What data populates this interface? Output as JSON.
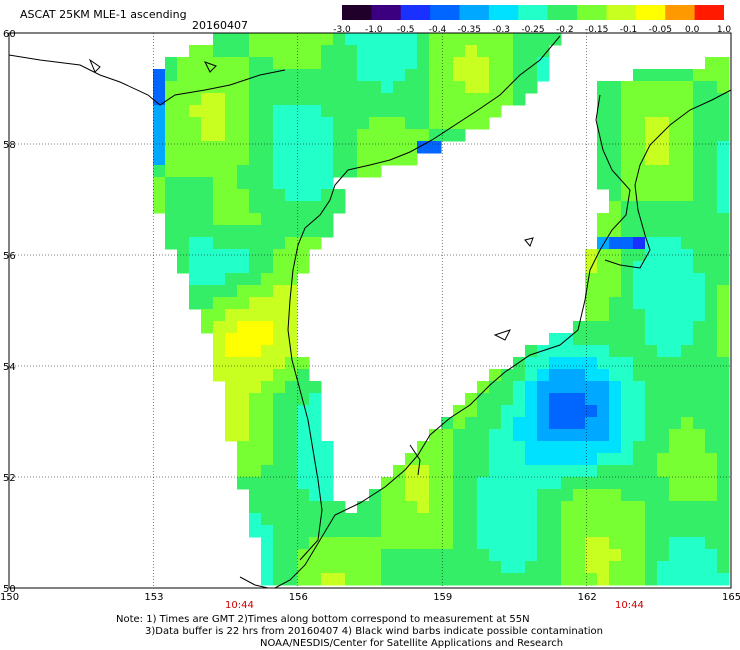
{
  "header": {
    "title": "ASCAT 25KM MLE-1 ascending",
    "date": "20160407"
  },
  "legend": {
    "labels": [
      "-3.0",
      "-1.0",
      "-0.5",
      "-0.4",
      "-0.35",
      "-0.3",
      "-0.25",
      "-0.2",
      "-0.15",
      "-0.1",
      "-0.05",
      "0.0",
      "1.0"
    ],
    "colors": [
      "#20002a",
      "#3a0080",
      "#1a30ff",
      "#0066ff",
      "#00a8ff",
      "#00e0ff",
      "#22ffc8",
      "#33ee66",
      "#77ff33",
      "#c8ff20",
      "#ffff00",
      "#ff9900",
      "#ff1a00"
    ]
  },
  "axes": {
    "lat_labels": [
      "60",
      "58",
      "56",
      "54",
      "52",
      "50"
    ],
    "lon_labels": [
      "150",
      "153",
      "156",
      "159",
      "162",
      "165"
    ]
  },
  "time_labels": [
    "10:44",
    "10:44"
  ],
  "footer": {
    "line1": "Note: 1) Times are GMT 2)Times along bottom correspond to measurement at 55N",
    "line2": "3)Data buffer is 22 hrs from 20160407 4) Black wind barbs indicate possible contamination",
    "line3": "NOAA/NESDIS/Center for Satellite Applications and Research"
  },
  "map_colors": {
    "land": "#ffffff",
    "coast": "#000000",
    "grid": "#000000",
    "border": "#000000"
  }
}
